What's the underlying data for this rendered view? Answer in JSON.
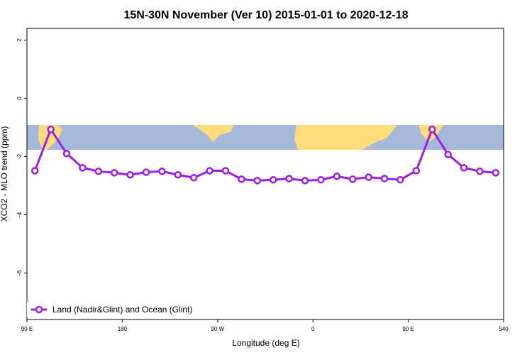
{
  "chart_data": {
    "type": "line",
    "title": "15N-30N November (Ver 10)   2015-01-01 to 2020-12-18",
    "x_label": "Longitude (deg E)",
    "y_label": "XCO2 - MLO trend (ppm)",
    "x": [
      97.5,
      112.5,
      127.5,
      142.5,
      157.5,
      172.5,
      187.5,
      202.5,
      217.5,
      232.5,
      247.5,
      262.5,
      277.5,
      292.5,
      307.5,
      322.5,
      337.5,
      352.5,
      367.5,
      382.5,
      397.5,
      412.5,
      427.5,
      442.5,
      457.5,
      472.5,
      487.5,
      502.5,
      517.5,
      532.5
    ],
    "series": [
      {
        "name": "Land (Nadir&Glint) and Ocean (Glint)",
        "color": "#9b1fe8",
        "values": [
          -2.49,
          -1.07,
          -1.9,
          -2.39,
          -2.51,
          -2.56,
          -2.63,
          -2.54,
          -2.51,
          -2.63,
          -2.73,
          -2.49,
          -2.49,
          -2.78,
          -2.83,
          -2.8,
          -2.76,
          -2.83,
          -2.8,
          -2.68,
          -2.78,
          -2.71,
          -2.76,
          -2.8,
          -2.49,
          -1.07,
          -1.93,
          -2.39,
          -2.51,
          -2.56
        ]
      }
    ],
    "xlim": [
      90,
      540
    ],
    "xticks": [
      {
        "value": 90,
        "label": "90 E"
      },
      180,
      {
        "value": 270,
        "label": "90 W"
      },
      {
        "value": 360,
        "label": "0"
      },
      {
        "value": 450,
        "label": "90 E"
      },
      540
    ],
    "ylim": [
      -7.6,
      2.4
    ],
    "yticks": [
      2,
      0,
      -2,
      -4,
      -6
    ],
    "legend": "bottom-left"
  }
}
